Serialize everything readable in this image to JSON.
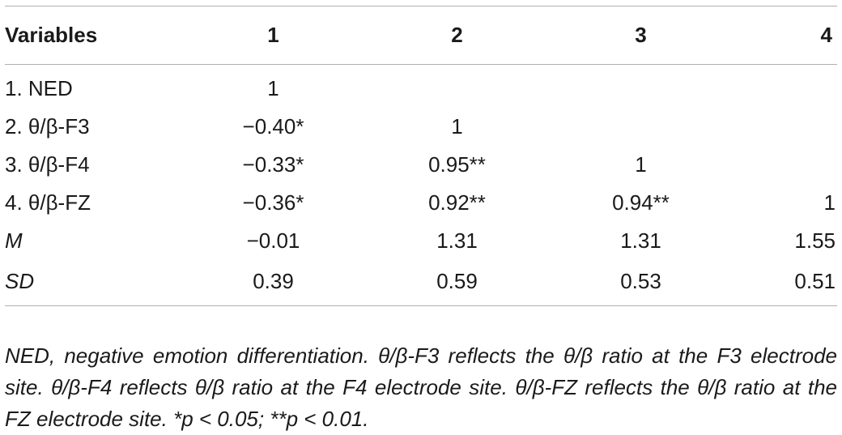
{
  "table": {
    "headers": [
      "Variables",
      "1",
      "2",
      "3",
      "4"
    ],
    "rows": [
      {
        "label": "1. NED",
        "italic": false,
        "values": [
          "1",
          "",
          "",
          ""
        ]
      },
      {
        "label": "2. θ/β-F3",
        "italic": false,
        "values": [
          "−0.40*",
          "1",
          "",
          ""
        ]
      },
      {
        "label": "3. θ/β-F4",
        "italic": false,
        "values": [
          "−0.33*",
          "0.95**",
          "1",
          ""
        ]
      },
      {
        "label": "4. θ/β-FZ",
        "italic": false,
        "values": [
          "−0.36*",
          "0.92**",
          "0.94**",
          "1"
        ]
      },
      {
        "label": "M",
        "italic": true,
        "values": [
          "−0.01",
          "1.31",
          "1.31",
          "1.55"
        ]
      },
      {
        "label": "SD",
        "italic": true,
        "values": [
          "0.39",
          "0.59",
          "0.53",
          "0.51"
        ]
      }
    ]
  },
  "note": "NED, negative emotion differentiation. θ/β-F3 reflects the θ/β ratio at the F3 electrode site. θ/β-F4 reflects θ/β ratio at the F4 electrode site. θ/β-FZ reflects the θ/β ratio at the FZ electrode site. *p < 0.05; **p < 0.01."
}
